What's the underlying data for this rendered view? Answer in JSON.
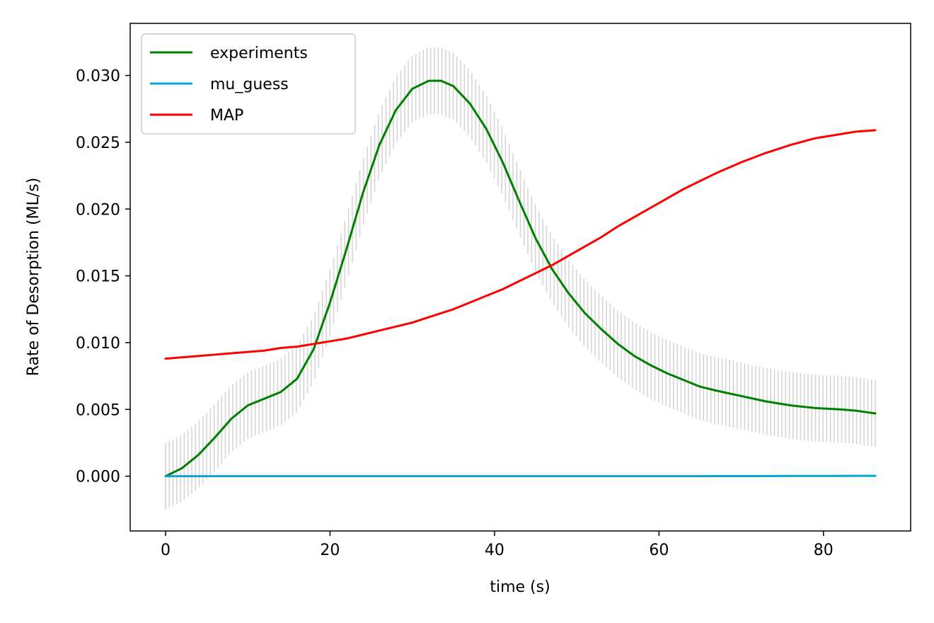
{
  "chart_data": {
    "type": "line",
    "title": "",
    "xlabel": "time (s)",
    "ylabel": "Rate of Desorption (ML/s)",
    "xlim": [
      -4.3,
      90.6
    ],
    "ylim": [
      -0.0041,
      0.0339
    ],
    "xticks": [
      0,
      20,
      40,
      60,
      80
    ],
    "xtick_labels": [
      "0",
      "20",
      "40",
      "60",
      "80"
    ],
    "yticks": [
      0.0,
      0.005,
      0.01,
      0.015,
      0.02,
      0.025,
      0.03
    ],
    "ytick_labels": [
      "0.000",
      "0.005",
      "0.010",
      "0.015",
      "0.020",
      "0.025",
      "0.030"
    ],
    "grid": false,
    "legend_position": "top-left",
    "x": [
      0,
      2,
      4,
      6,
      8,
      10,
      12,
      14,
      16,
      18,
      20,
      22,
      24,
      26,
      28,
      30,
      32,
      33.5,
      35,
      37,
      39,
      41,
      43,
      45,
      47,
      49,
      51,
      53,
      55,
      57,
      59,
      61,
      63,
      65,
      67,
      70,
      73,
      76,
      79,
      82,
      84,
      86.3
    ],
    "series": [
      {
        "name": "experiments",
        "color": "#008000",
        "values": [
          0.0,
          0.0006,
          0.0016,
          0.0029,
          0.0043,
          0.0053,
          0.0058,
          0.0063,
          0.0073,
          0.0095,
          0.013,
          0.017,
          0.0212,
          0.0248,
          0.0274,
          0.029,
          0.0296,
          0.0296,
          0.0292,
          0.0279,
          0.026,
          0.0235,
          0.0206,
          0.0178,
          0.0155,
          0.0137,
          0.0122,
          0.011,
          0.0099,
          0.009,
          0.0083,
          0.0077,
          0.0072,
          0.0067,
          0.0064,
          0.006,
          0.0056,
          0.0053,
          0.0051,
          0.005,
          0.0049,
          0.0047
        ],
        "error": 0.0025
      },
      {
        "name": "mu_guess",
        "color": "#0aa5d8",
        "values": [
          0.0,
          0.0,
          0.0,
          0.0,
          0.0,
          0.0,
          0.0,
          0.0,
          0.0,
          0.0,
          0.0,
          0.0,
          0.0,
          0.0,
          0.0,
          0.0,
          0.0,
          0.0,
          0.0,
          0.0,
          0.0,
          0.0,
          0.0,
          0.0,
          0.0,
          0.0,
          0.0,
          0.0,
          0.0,
          0.0,
          0.0,
          0.0,
          0.0,
          0.0,
          1e-05,
          1e-05,
          1e-05,
          2e-05,
          2e-05,
          2e-05,
          3e-05,
          3e-05
        ]
      },
      {
        "name": "MAP",
        "color": "#ff0000",
        "values": [
          0.0088,
          0.0089,
          0.009,
          0.0091,
          0.0092,
          0.0093,
          0.0094,
          0.0096,
          0.0097,
          0.0099,
          0.0101,
          0.0103,
          0.0106,
          0.0109,
          0.0112,
          0.0115,
          0.0119,
          0.0122,
          0.0125,
          0.013,
          0.0135,
          0.014,
          0.0146,
          0.0152,
          0.0158,
          0.0165,
          0.0172,
          0.0179,
          0.0187,
          0.0194,
          0.0201,
          0.0208,
          0.0215,
          0.0221,
          0.0227,
          0.0235,
          0.0242,
          0.0248,
          0.0253,
          0.0256,
          0.0258,
          0.0259
        ]
      }
    ]
  }
}
